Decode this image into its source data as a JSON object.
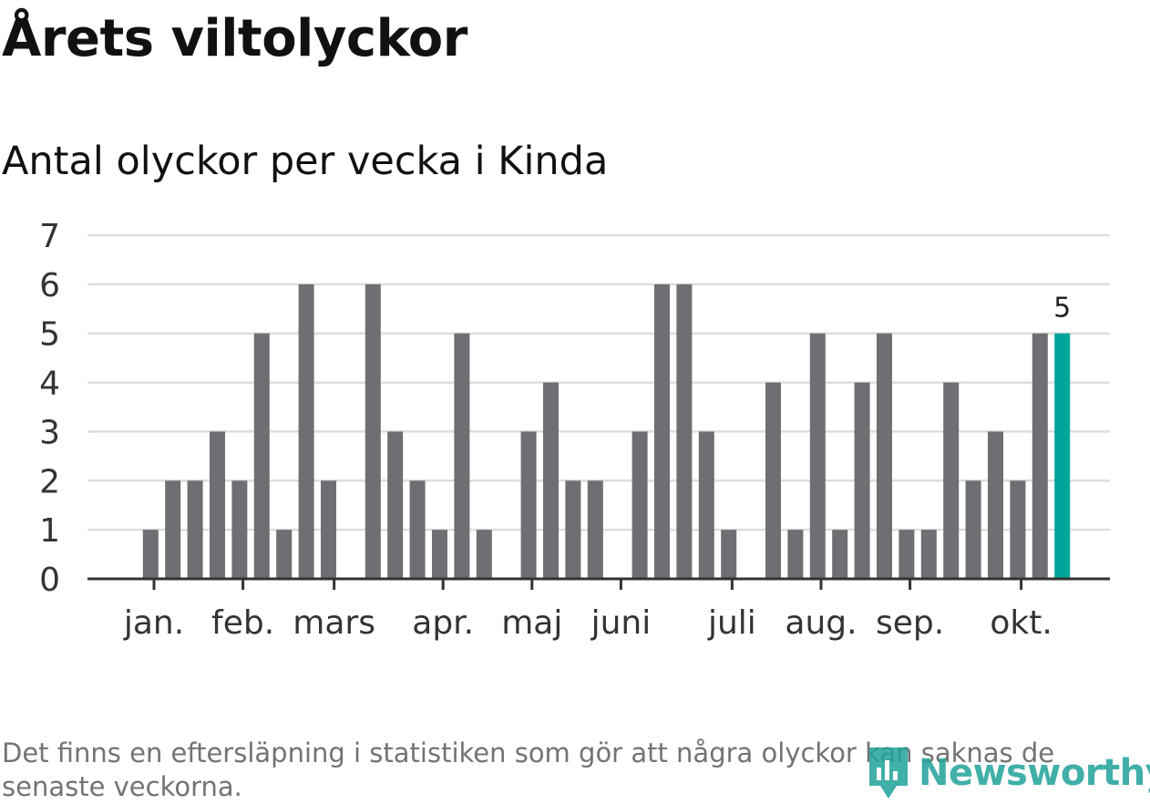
{
  "title": "Årets viltolyckor",
  "subtitle": "Antal olyckor per vecka i Kinda",
  "footnote": "Det finns en eftersläpning i statistiken som gör att några olyckor kan saknas de senaste veckorna.",
  "logo_text": "Newsworthy",
  "colors": {
    "bar": "#6f6e73",
    "highlight": "#00a49a",
    "grid": "#dddddd",
    "axis": "#333333",
    "logo": "#1fa29a"
  },
  "chart_data": {
    "type": "bar",
    "ylim": [
      0,
      7
    ],
    "yticks": [
      0,
      1,
      2,
      3,
      4,
      5,
      6,
      7
    ],
    "grid": true,
    "values": [
      0,
      0,
      1,
      2,
      2,
      3,
      2,
      5,
      1,
      6,
      2,
      0,
      6,
      3,
      2,
      1,
      5,
      1,
      0,
      3,
      4,
      2,
      2,
      0,
      3,
      6,
      6,
      3,
      1,
      0,
      4,
      1,
      5,
      1,
      4,
      5,
      1,
      1,
      4,
      2,
      3,
      2,
      5,
      5
    ],
    "highlight_index": 43,
    "highlight_label": "5",
    "month_labels": [
      {
        "label": "jan.",
        "week": 2.5
      },
      {
        "label": "feb.",
        "week": 6.5
      },
      {
        "label": "mars",
        "week": 10.6
      },
      {
        "label": "apr.",
        "week": 15.5
      },
      {
        "label": "maj",
        "week": 19.5
      },
      {
        "label": "juni",
        "week": 23.5
      },
      {
        "label": "juli",
        "week": 28.5
      },
      {
        "label": "aug.",
        "week": 32.5
      },
      {
        "label": "sep.",
        "week": 36.5
      },
      {
        "label": "okt.",
        "week": 41.5
      }
    ]
  }
}
